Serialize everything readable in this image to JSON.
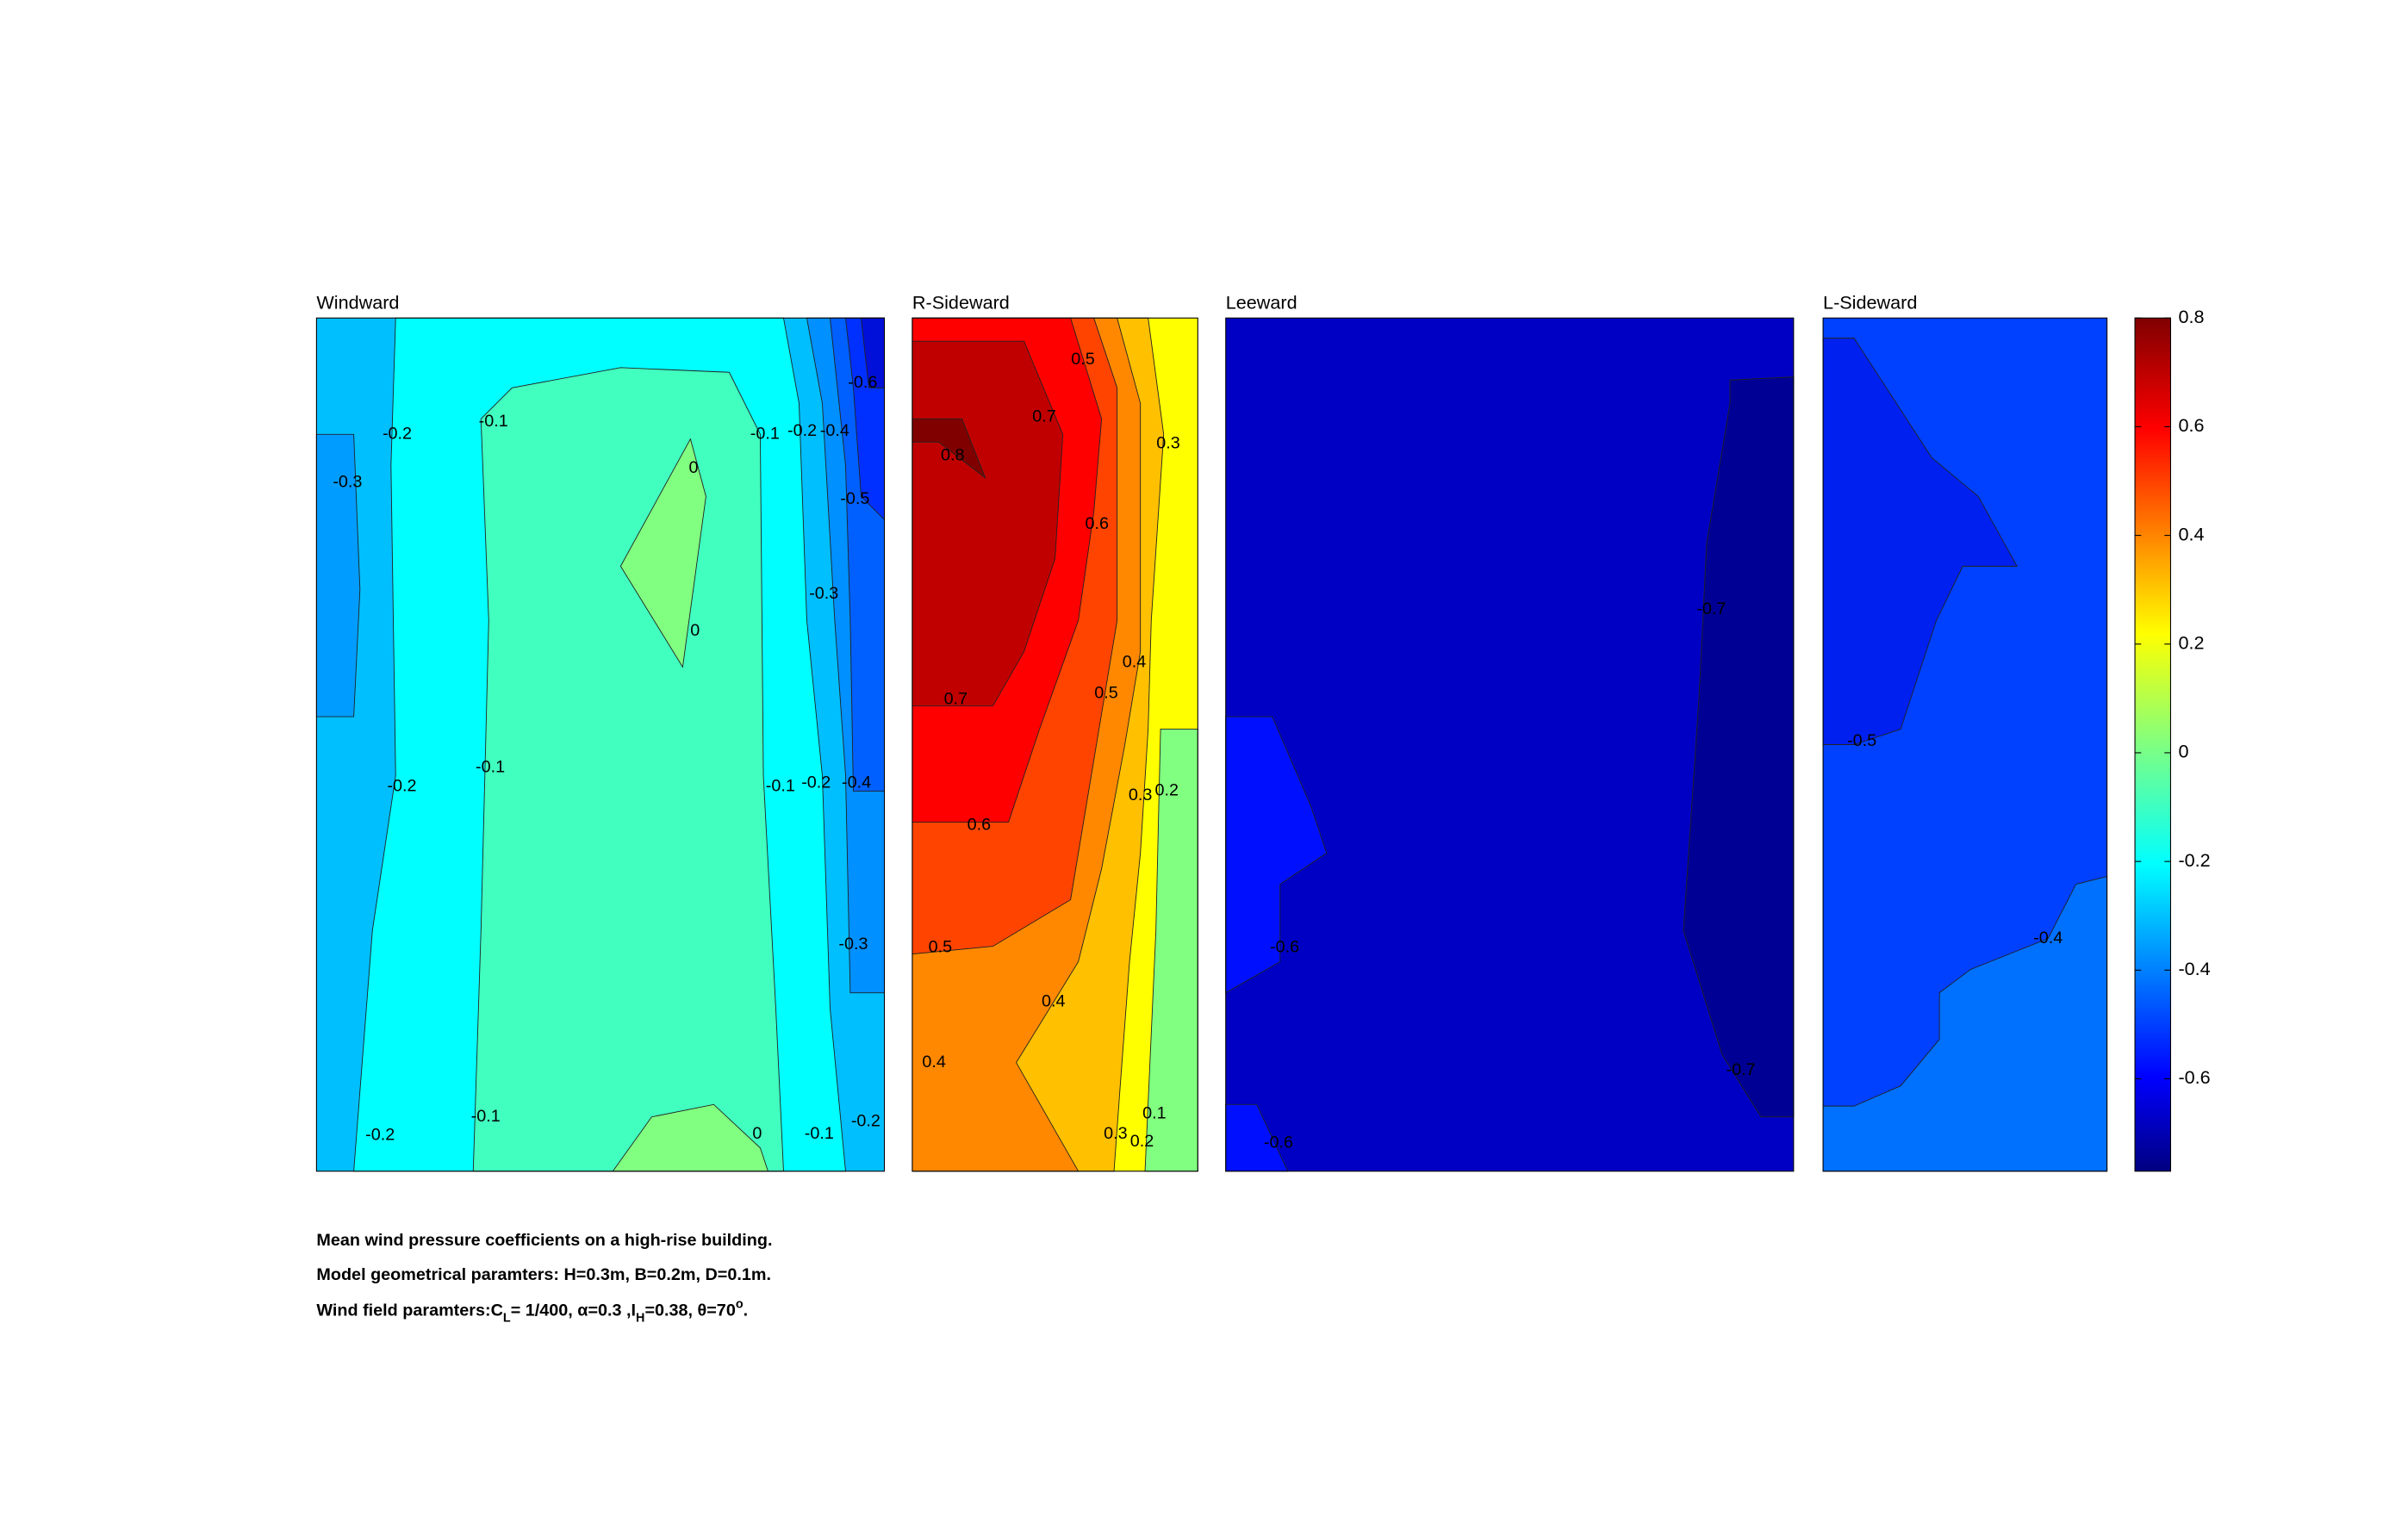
{
  "chart_data": [
    {
      "type": "contour",
      "title": "Windward",
      "labels": [
        -0.3,
        -0.2,
        -0.1,
        0,
        0,
        -0.3,
        -0.5,
        -0.6,
        -0.4,
        -0.2,
        -0.1,
        -0.2,
        -0.1,
        -0.1,
        -0.2,
        -0.4,
        -0.3,
        -0.2,
        -0.1,
        0,
        -0.1,
        -0.2
      ]
    },
    {
      "type": "contour",
      "title": "R-Sideward",
      "labels": [
        0.5,
        0.7,
        0.8,
        0.6,
        0.3,
        0.4,
        0.5,
        0.7,
        0.3,
        0.2,
        0.6,
        0.5,
        0.4,
        0.4,
        0.3,
        0.2,
        0.1
      ]
    },
    {
      "type": "contour",
      "title": "Leeward",
      "labels": [
        -0.7,
        -0.6,
        -0.7,
        -0.6
      ]
    },
    {
      "type": "contour",
      "title": "L-Sideward",
      "labels": [
        -0.5,
        -0.4
      ]
    }
  ],
  "colorbar": {
    "lim": [
      -0.77,
      0.8
    ],
    "ticks": [
      -0.6,
      -0.4,
      -0.2,
      0,
      0.2,
      0.4,
      0.6,
      0.8
    ]
  },
  "caption": [
    "Mean wind pressure coefficients on a high-rise building.",
    "Model geometrical paramters: H=0.3m, B=0.2m, D=0.1m.",
    [
      "Wind field paramters:C",
      "L",
      "= 1/400, α=0.3 ,I",
      "H",
      "=0.38, θ=70",
      "o",
      "."
    ]
  ]
}
